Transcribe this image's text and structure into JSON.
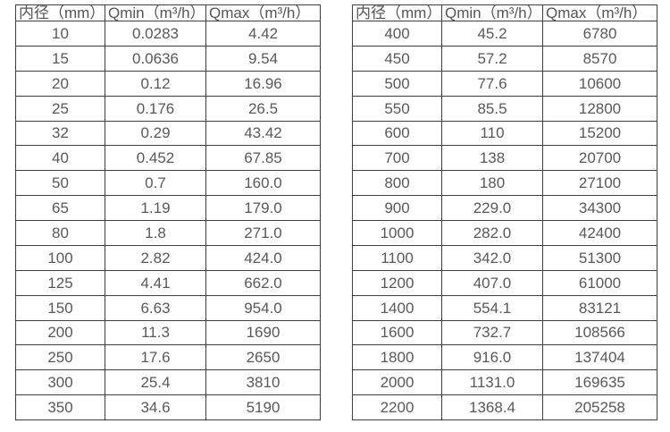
{
  "colors": {
    "border": "#404040",
    "text": "#595959",
    "background": "#ffffff"
  },
  "tables": [
    {
      "name": "flow-table-small-diameters",
      "headers": [
        "内径（mm）",
        "Qmin（m³/h）",
        "Qmax（m³/h）"
      ],
      "rows": [
        [
          "10",
          "0.0283",
          "4.42"
        ],
        [
          "15",
          "0.0636",
          "9.54"
        ],
        [
          "20",
          "0.12",
          "16.96"
        ],
        [
          "25",
          "0.176",
          "26.5"
        ],
        [
          "32",
          "0.29",
          "43.42"
        ],
        [
          "40",
          "0.452",
          "67.85"
        ],
        [
          "50",
          "0.7",
          "160.0"
        ],
        [
          "65",
          "1.19",
          "179.0"
        ],
        [
          "80",
          "1.8",
          "271.0"
        ],
        [
          "100",
          "2.82",
          "424.0"
        ],
        [
          "125",
          "4.41",
          "662.0"
        ],
        [
          "150",
          "6.63",
          "954.0"
        ],
        [
          "200",
          "11.3",
          "1690"
        ],
        [
          "250",
          "17.6",
          "2650"
        ],
        [
          "300",
          "25.4",
          "3810"
        ],
        [
          "350",
          "34.6",
          "5190"
        ]
      ]
    },
    {
      "name": "flow-table-large-diameters",
      "headers": [
        "内径（mm）",
        "Qmin（m³/h）",
        "Qmax（m³/h）"
      ],
      "rows": [
        [
          "400",
          "45.2",
          "6780"
        ],
        [
          "450",
          "57.2",
          "8570"
        ],
        [
          "500",
          "77.6",
          "10600"
        ],
        [
          "550",
          "85.5",
          "12800"
        ],
        [
          "600",
          "110",
          "15200"
        ],
        [
          "700",
          "138",
          "20700"
        ],
        [
          "800",
          "180",
          "27100"
        ],
        [
          "900",
          "229.0",
          "34300"
        ],
        [
          "1000",
          "282.0",
          "42400"
        ],
        [
          "1100",
          "342.0",
          "51300"
        ],
        [
          "1200",
          "407.0",
          "61000"
        ],
        [
          "1400",
          "554.1",
          "83121"
        ],
        [
          "1600",
          "732.7",
          "108566"
        ],
        [
          "1800",
          "916.0",
          "137404"
        ],
        [
          "2000",
          "1131.0",
          "169635"
        ],
        [
          "2200",
          "1368.4",
          "205258"
        ]
      ]
    }
  ]
}
